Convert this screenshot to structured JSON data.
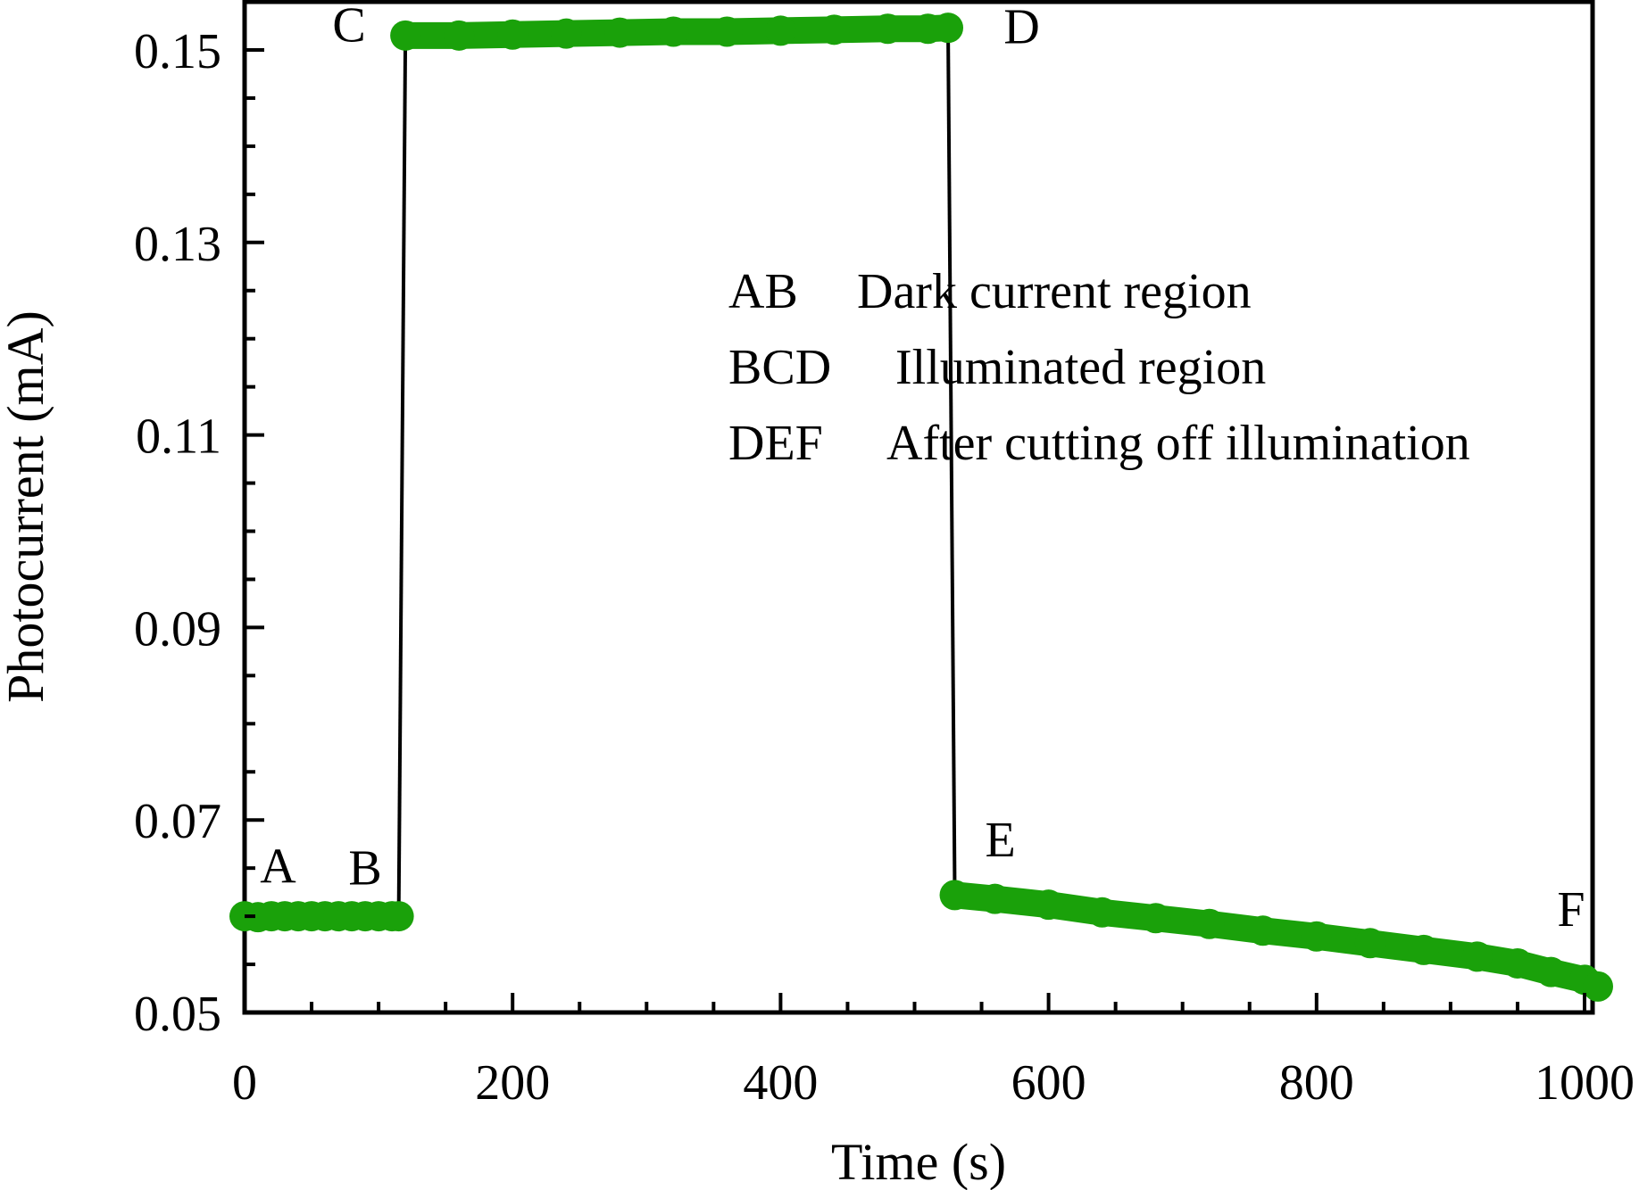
{
  "chart_data": {
    "type": "line",
    "title": "",
    "xlabel": "Time (s)",
    "ylabel": "Photocurrent (mA)",
    "xlim": [
      0,
      1000
    ],
    "ylim": [
      0.05,
      0.155
    ],
    "x_ticks": [
      "0",
      "200",
      "400",
      "600",
      "800",
      "1000"
    ],
    "y_ticks": [
      "0.05",
      "0.07",
      "0.09",
      "0.11",
      "0.13",
      "0.15"
    ],
    "grid": false,
    "legend_placement": "upper-right-inside",
    "colors": {
      "marker": "#1aa10a",
      "connector": "#000000",
      "axis": "#000000"
    },
    "series": [
      {
        "segments": [
          {
            "label": "AB",
            "x": [
              0,
              10,
              20,
              30,
              40,
              50,
              60,
              70,
              80,
              90,
              100,
              110,
              115
            ],
            "y": [
              0.06,
              0.0599,
              0.06,
              0.06,
              0.06,
              0.06,
              0.06,
              0.06,
              0.06,
              0.06,
              0.06,
              0.06,
              0.06
            ]
          },
          {
            "label": "CD",
            "x": [
              120,
              160,
              200,
              240,
              280,
              320,
              360,
              400,
              440,
              480,
              510,
              525
            ],
            "y": [
              0.1515,
              0.1515,
              0.1516,
              0.1517,
              0.1518,
              0.1519,
              0.1519,
              0.152,
              0.1521,
              0.1522,
              0.1522,
              0.1523
            ]
          },
          {
            "label": "EF",
            "x": [
              530,
              560,
              600,
              640,
              680,
              720,
              760,
              800,
              840,
              880,
              920,
              950,
              975,
              1000,
              1010
            ],
            "y": [
              0.0622,
              0.0618,
              0.0612,
              0.0604,
              0.0598,
              0.0592,
              0.0585,
              0.0579,
              0.0572,
              0.0565,
              0.0558,
              0.0551,
              0.0542,
              0.0534,
              0.0527
            ]
          }
        ]
      }
    ],
    "connectors": [
      {
        "x": [
          115,
          120
        ],
        "y": [
          0.06,
          0.1515
        ]
      },
      {
        "x": [
          525,
          530
        ],
        "y": [
          0.1523,
          0.0622
        ]
      }
    ],
    "point_labels": [
      {
        "text": "A",
        "x": 25,
        "y": 0.0635
      },
      {
        "text": "B",
        "x": 90,
        "y": 0.0633
      },
      {
        "text": "C",
        "x": 78,
        "y": 0.1509
      },
      {
        "text": "D",
        "x": 580,
        "y": 0.1507
      },
      {
        "text": "E",
        "x": 564,
        "y": 0.0662
      },
      {
        "text": "F",
        "x": 990,
        "y": 0.059
      }
    ],
    "legend": [
      {
        "key": "AB",
        "text": "Dark current region"
      },
      {
        "key": "BCD",
        "text": "Illuminated region"
      },
      {
        "key": "DEF",
        "text": "After cutting off illumination"
      }
    ]
  }
}
